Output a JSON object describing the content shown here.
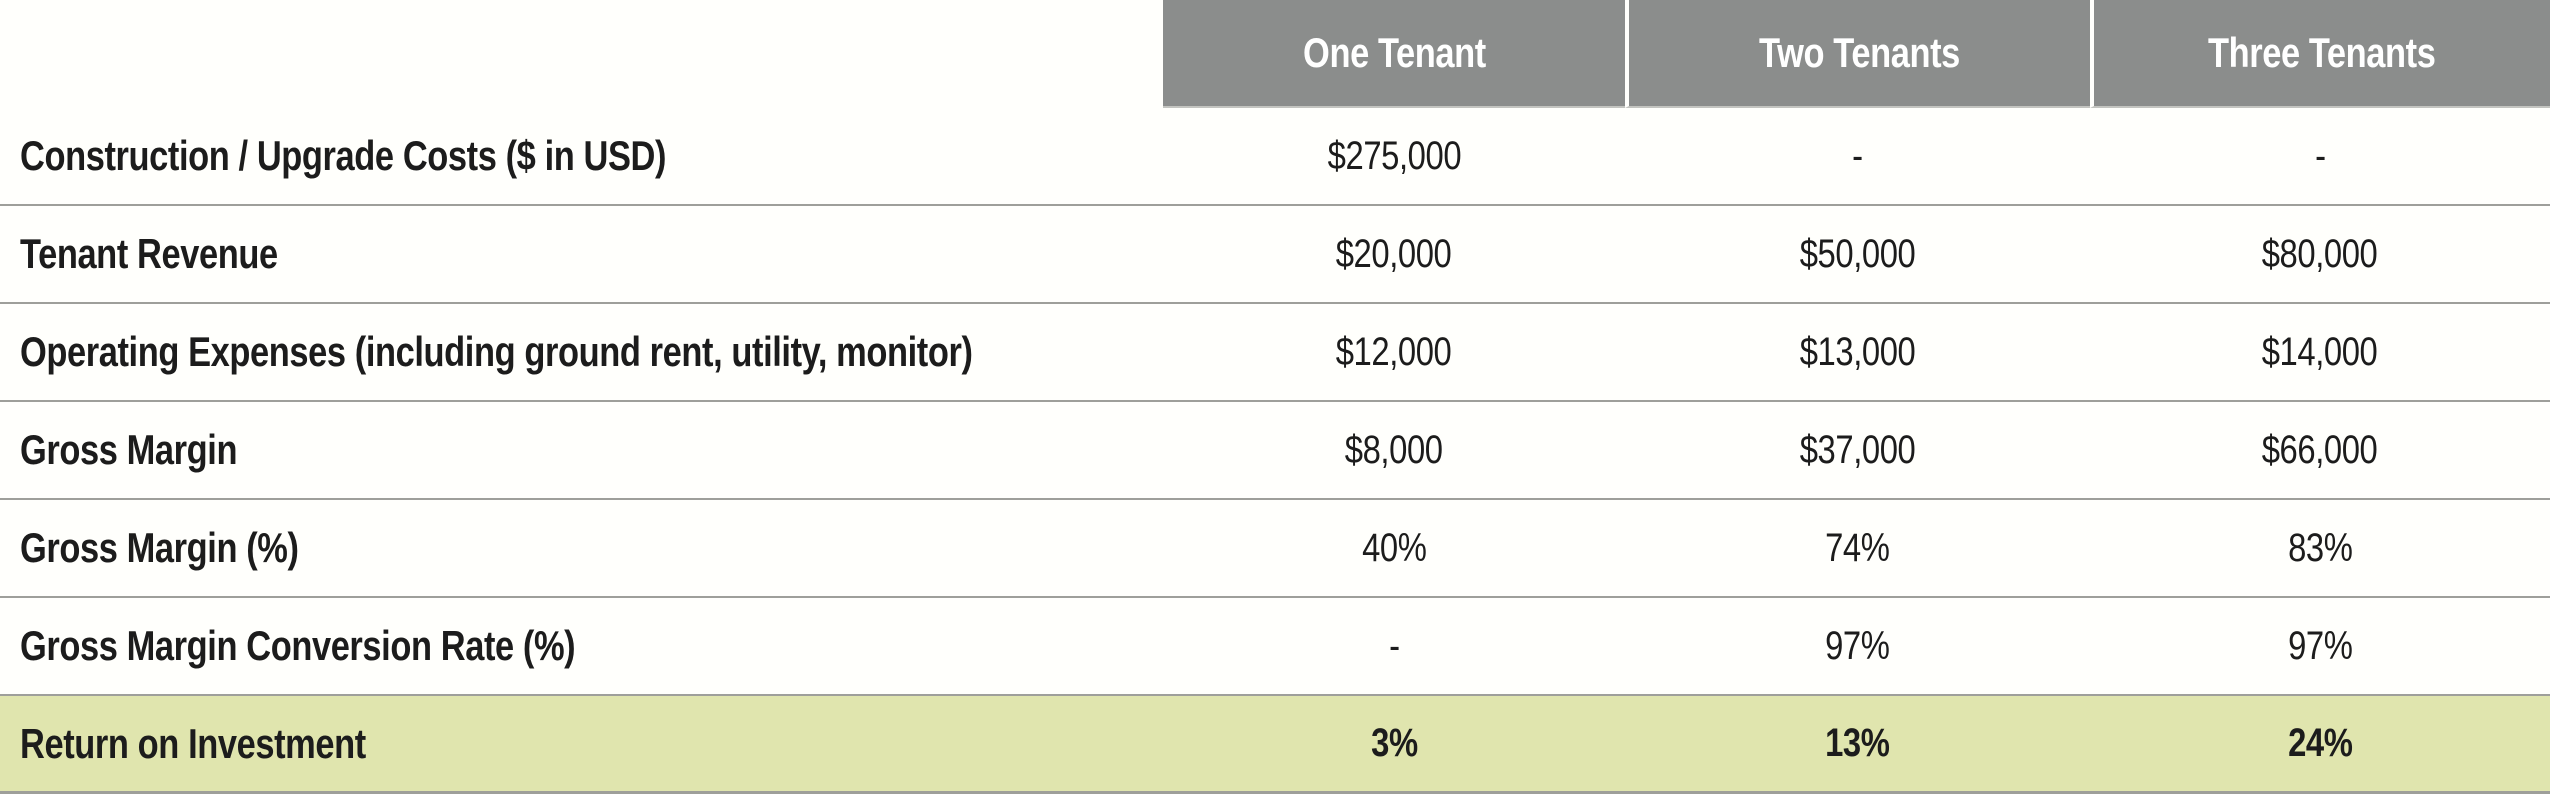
{
  "table": {
    "columns": [
      "One Tenant",
      "Two Tenants",
      "Three Tenants"
    ],
    "rows": [
      {
        "label": "Construction / Upgrade Costs ($ in USD)",
        "values": [
          "$275,000",
          "-",
          "-"
        ]
      },
      {
        "label": "Tenant Revenue",
        "values": [
          "$20,000",
          "$50,000",
          "$80,000"
        ]
      },
      {
        "label": "Operating Expenses (including ground rent, utility, monitor)",
        "values": [
          "$12,000",
          "$13,000",
          "$14,000"
        ]
      },
      {
        "label": "Gross Margin",
        "values": [
          "$8,000",
          "$37,000",
          "$66,000"
        ]
      },
      {
        "label": "Gross Margin (%)",
        "values": [
          "40%",
          "74%",
          "83%"
        ]
      },
      {
        "label": "Gross Margin Conversion Rate (%)",
        "values": [
          "-",
          "97%",
          "97%"
        ]
      },
      {
        "label": "Return on Investment",
        "values": [
          "3%",
          "13%",
          "24%"
        ],
        "highlight": true
      }
    ],
    "colors": {
      "header_bg": "#8b8d8c",
      "header_text": "#ffffff",
      "highlight_bg": "#e0e5ae",
      "divider": "#9e9f9a",
      "background": "#fffffc",
      "text": "#1c1c1c"
    }
  },
  "chart_data": {
    "type": "table",
    "title": "",
    "columns": [
      "",
      "One Tenant",
      "Two Tenants",
      "Three Tenants"
    ],
    "rows": [
      [
        "Construction / Upgrade Costs ($ in USD)",
        "$275,000",
        "-",
        "-"
      ],
      [
        "Tenant Revenue",
        "$20,000",
        "$50,000",
        "$80,000"
      ],
      [
        "Operating Expenses (including ground rent, utility, monitor)",
        "$12,000",
        "$13,000",
        "$14,000"
      ],
      [
        "Gross Margin",
        "$8,000",
        "$37,000",
        "$66,000"
      ],
      [
        "Gross Margin (%)",
        "40%",
        "74%",
        "83%"
      ],
      [
        "Gross Margin Conversion Rate (%)",
        "-",
        "97%",
        "97%"
      ],
      [
        "Return on Investment",
        "3%",
        "13%",
        "24%"
      ]
    ]
  }
}
